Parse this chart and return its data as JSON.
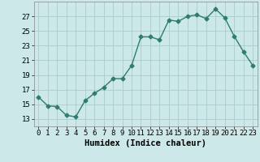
{
  "x": [
    0,
    1,
    2,
    3,
    4,
    5,
    6,
    7,
    8,
    9,
    10,
    11,
    12,
    13,
    14,
    15,
    16,
    17,
    18,
    19,
    20,
    21,
    22,
    23
  ],
  "y": [
    16.0,
    14.8,
    14.7,
    13.5,
    13.3,
    15.5,
    16.5,
    17.3,
    18.5,
    18.5,
    20.3,
    24.2,
    24.2,
    23.8,
    26.5,
    26.3,
    27.0,
    27.2,
    26.7,
    28.0,
    26.8,
    24.3,
    22.2,
    20.3
  ],
  "line_color": "#2e7d6e",
  "marker": "D",
  "marker_size": 2.5,
  "bg_color": "#cce8e8",
  "grid_color": "#aacccc",
  "xlabel": "Humidex (Indice chaleur)",
  "ylim": [
    12,
    29
  ],
  "xlim": [
    -0.5,
    23.5
  ],
  "yticks": [
    13,
    15,
    17,
    19,
    21,
    23,
    25,
    27
  ],
  "xticks": [
    0,
    1,
    2,
    3,
    4,
    5,
    6,
    7,
    8,
    9,
    10,
    11,
    12,
    13,
    14,
    15,
    16,
    17,
    18,
    19,
    20,
    21,
    22,
    23
  ],
  "xtick_labels": [
    "0",
    "1",
    "2",
    "3",
    "4",
    "5",
    "6",
    "7",
    "8",
    "9",
    "10",
    "11",
    "12",
    "13",
    "14",
    "15",
    "16",
    "17",
    "18",
    "19",
    "20",
    "21",
    "22",
    "23"
  ],
  "tick_fontsize": 6.5,
  "xlabel_fontsize": 7.5,
  "line_width": 1.0
}
